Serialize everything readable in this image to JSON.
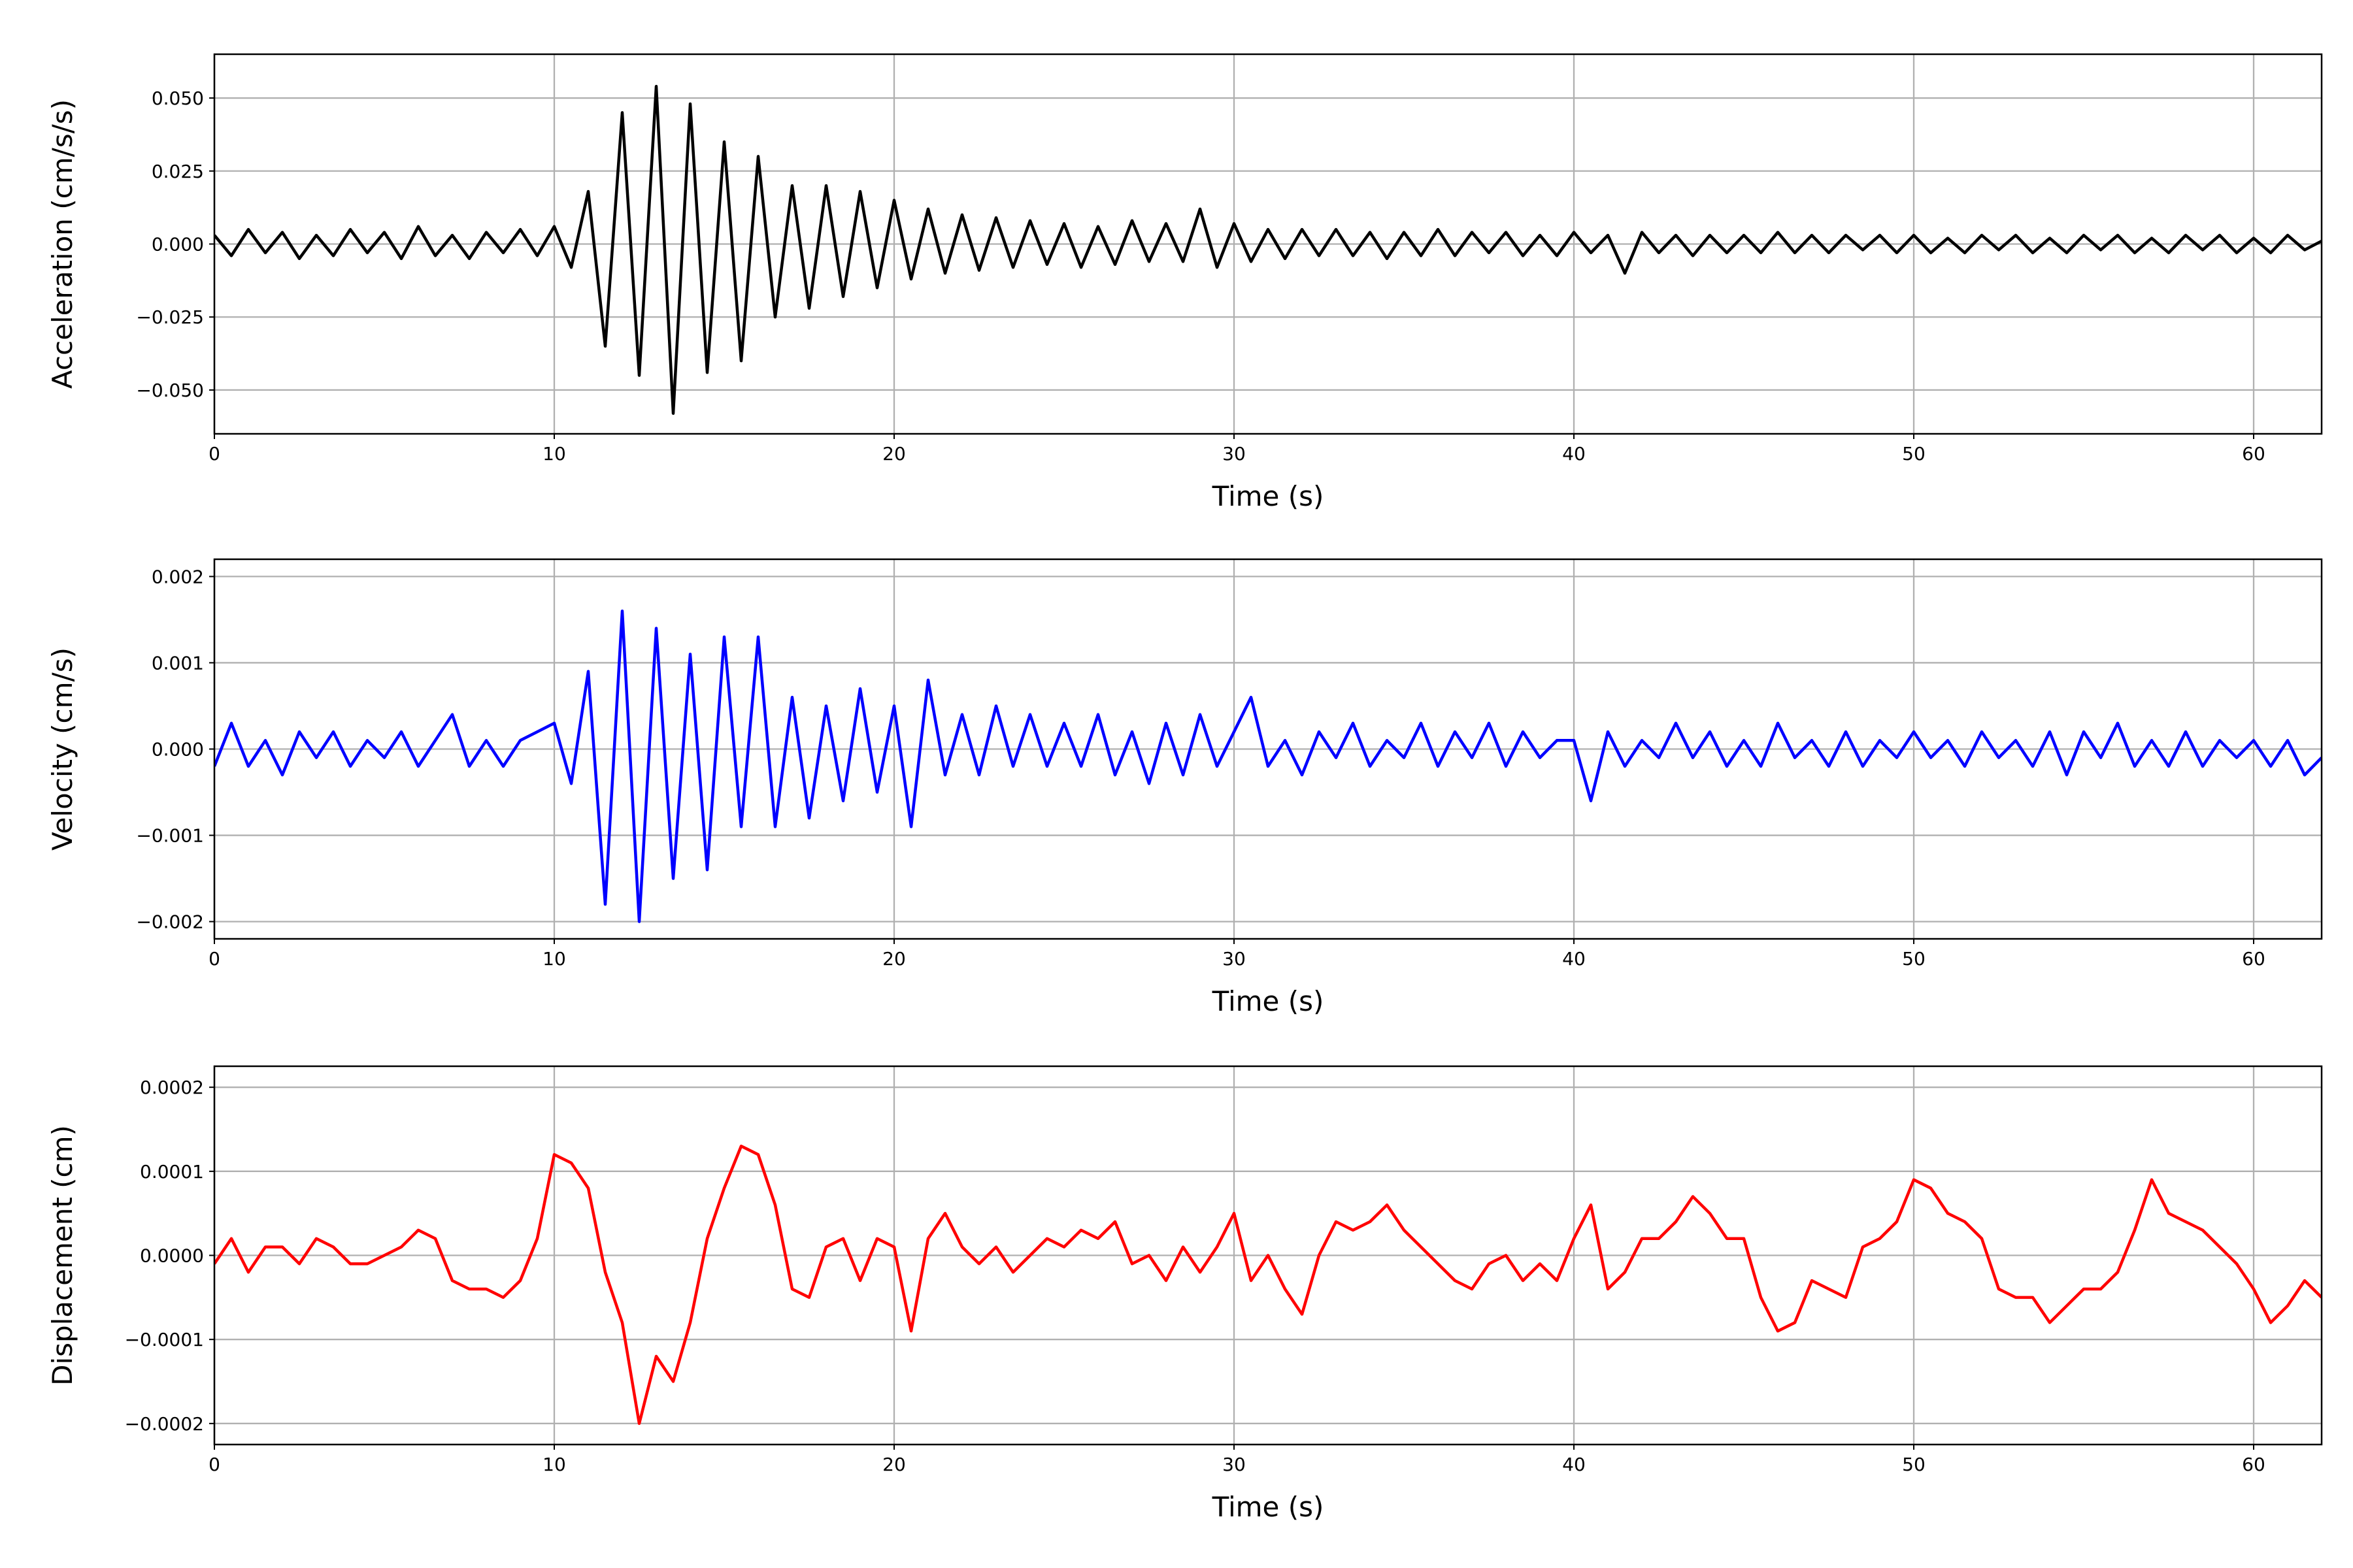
{
  "chart_data": [
    {
      "type": "line",
      "xlabel": "Time (s)",
      "ylabel": "Acceleration (cm/s/s)",
      "color": "#000000",
      "grid": true,
      "xlim": [
        0,
        62
      ],
      "xticks": [
        0,
        10,
        20,
        30,
        40,
        50,
        60
      ],
      "ylim": [
        -0.065,
        0.065
      ],
      "yticks": [
        {
          "value": -0.05,
          "label": "−0.050"
        },
        {
          "value": -0.025,
          "label": "−0.025"
        },
        {
          "value": 0,
          "label": "0.000"
        },
        {
          "value": 0.025,
          "label": "0.025"
        },
        {
          "value": 0.05,
          "label": "0.050"
        }
      ],
      "x": [
        0,
        0.5,
        1,
        1.5,
        2,
        2.5,
        3,
        3.5,
        4,
        4.5,
        5,
        5.5,
        6,
        6.5,
        7,
        7.5,
        8,
        8.5,
        9,
        9.5,
        10,
        10.5,
        11,
        11.5,
        12,
        12.5,
        13,
        13.5,
        14,
        14.5,
        15,
        15.5,
        16,
        16.5,
        17,
        17.5,
        18,
        18.5,
        19,
        19.5,
        20,
        20.5,
        21,
        21.5,
        22,
        22.5,
        23,
        23.5,
        24,
        24.5,
        25,
        25.5,
        26,
        26.5,
        27,
        27.5,
        28,
        28.5,
        29,
        29.5,
        30,
        30.5,
        31,
        31.5,
        32,
        32.5,
        33,
        33.5,
        34,
        34.5,
        35,
        35.5,
        36,
        36.5,
        37,
        37.5,
        38,
        38.5,
        39,
        39.5,
        40,
        40.5,
        41,
        41.5,
        42,
        42.5,
        43,
        43.5,
        44,
        44.5,
        45,
        45.5,
        46,
        46.5,
        47,
        47.5,
        48,
        48.5,
        49,
        49.5,
        50,
        50.5,
        51,
        51.5,
        52,
        52.5,
        53,
        53.5,
        54,
        54.5,
        55,
        55.5,
        56,
        56.5,
        57,
        57.5,
        58,
        58.5,
        59,
        59.5,
        60,
        60.5,
        61,
        61.5,
        62
      ],
      "values": [
        0.003,
        -0.004,
        0.005,
        -0.003,
        0.004,
        -0.005,
        0.003,
        -0.004,
        0.005,
        -0.003,
        0.004,
        -0.005,
        0.006,
        -0.004,
        0.003,
        -0.005,
        0.004,
        -0.003,
        0.005,
        -0.004,
        0.006,
        -0.008,
        0.018,
        -0.035,
        0.045,
        -0.045,
        0.054,
        -0.058,
        0.048,
        -0.044,
        0.035,
        -0.04,
        0.03,
        -0.025,
        0.02,
        -0.022,
        0.02,
        -0.018,
        0.018,
        -0.015,
        0.015,
        -0.012,
        0.012,
        -0.01,
        0.01,
        -0.009,
        0.009,
        -0.008,
        0.008,
        -0.007,
        0.007,
        -0.008,
        0.006,
        -0.007,
        0.008,
        -0.006,
        0.007,
        -0.006,
        0.012,
        -0.008,
        0.007,
        -0.006,
        0.005,
        -0.005,
        0.005,
        -0.004,
        0.005,
        -0.004,
        0.004,
        -0.005,
        0.004,
        -0.004,
        0.005,
        -0.004,
        0.004,
        -0.003,
        0.004,
        -0.004,
        0.003,
        -0.004,
        0.004,
        -0.003,
        0.003,
        -0.01,
        0.004,
        -0.003,
        0.003,
        -0.004,
        0.003,
        -0.003,
        0.003,
        -0.003,
        0.004,
        -0.003,
        0.003,
        -0.003,
        0.003,
        -0.002,
        0.003,
        -0.003,
        0.003,
        -0.003,
        0.002,
        -0.003,
        0.003,
        -0.002,
        0.003,
        -0.003,
        0.002,
        -0.003,
        0.003,
        -0.002,
        0.003,
        -0.003,
        0.002,
        -0.003,
        0.003,
        -0.002,
        0.003,
        -0.003,
        0.002,
        -0.003,
        0.003,
        -0.002,
        0.001
      ]
    },
    {
      "type": "line",
      "xlabel": "Time (s)",
      "ylabel": "Velocity (cm/s)",
      "color": "#0000ff",
      "grid": true,
      "xlim": [
        0,
        62
      ],
      "xticks": [
        0,
        10,
        20,
        30,
        40,
        50,
        60
      ],
      "ylim": [
        -0.0022,
        0.0022
      ],
      "yticks": [
        {
          "value": -0.002,
          "label": "−0.002"
        },
        {
          "value": -0.001,
          "label": "−0.001"
        },
        {
          "value": 0,
          "label": "0.000"
        },
        {
          "value": 0.001,
          "label": "0.001"
        },
        {
          "value": 0.002,
          "label": "0.002"
        }
      ],
      "x": [
        0,
        0.5,
        1,
        1.5,
        2,
        2.5,
        3,
        3.5,
        4,
        4.5,
        5,
        5.5,
        6,
        6.5,
        7,
        7.5,
        8,
        8.5,
        9,
        9.5,
        10,
        10.5,
        11,
        11.5,
        12,
        12.5,
        13,
        13.5,
        14,
        14.5,
        15,
        15.5,
        16,
        16.5,
        17,
        17.5,
        18,
        18.5,
        19,
        19.5,
        20,
        20.5,
        21,
        21.5,
        22,
        22.5,
        23,
        23.5,
        24,
        24.5,
        25,
        25.5,
        26,
        26.5,
        27,
        27.5,
        28,
        28.5,
        29,
        29.5,
        30,
        30.5,
        31,
        31.5,
        32,
        32.5,
        33,
        33.5,
        34,
        34.5,
        35,
        35.5,
        36,
        36.5,
        37,
        37.5,
        38,
        38.5,
        39,
        39.5,
        40,
        40.5,
        41,
        41.5,
        42,
        42.5,
        43,
        43.5,
        44,
        44.5,
        45,
        45.5,
        46,
        46.5,
        47,
        47.5,
        48,
        48.5,
        49,
        49.5,
        50,
        50.5,
        51,
        51.5,
        52,
        52.5,
        53,
        53.5,
        54,
        54.5,
        55,
        55.5,
        56,
        56.5,
        57,
        57.5,
        58,
        58.5,
        59,
        59.5,
        60,
        60.5,
        61,
        61.5,
        62
      ],
      "values": [
        -0.0002,
        0.0003,
        -0.0002,
        0.0001,
        -0.0003,
        0.0002,
        -0.0001,
        0.0002,
        -0.0002,
        0.0001,
        -0.0001,
        0.0002,
        -0.0002,
        0.0001,
        0.0004,
        -0.0002,
        0.0001,
        -0.0002,
        0.0001,
        0.0002,
        0.0003,
        -0.0004,
        0.0009,
        -0.0018,
        0.0016,
        -0.002,
        0.0014,
        -0.0015,
        0.0011,
        -0.0014,
        0.0013,
        -0.0009,
        0.0013,
        -0.0009,
        0.0006,
        -0.0008,
        0.0005,
        -0.0006,
        0.0007,
        -0.0005,
        0.0005,
        -0.0009,
        0.0008,
        -0.0003,
        0.0004,
        -0.0003,
        0.0005,
        -0.0002,
        0.0004,
        -0.0002,
        0.0003,
        -0.0002,
        0.0004,
        -0.0003,
        0.0002,
        -0.0004,
        0.0003,
        -0.0003,
        0.0004,
        -0.0002,
        0.0002,
        0.0006,
        -0.0002,
        0.0001,
        -0.0003,
        0.0002,
        -0.0001,
        0.0003,
        -0.0002,
        0.0001,
        -0.0001,
        0.0003,
        -0.0002,
        0.0002,
        -0.0001,
        0.0003,
        -0.0002,
        0.0002,
        -0.0001,
        0.0001,
        0.0001,
        -0.0006,
        0.0002,
        -0.0002,
        0.0001,
        -0.0001,
        0.0003,
        -0.0001,
        0.0002,
        -0.0002,
        0.0001,
        -0.0002,
        0.0003,
        -0.0001,
        0.0001,
        -0.0002,
        0.0002,
        -0.0002,
        0.0001,
        -0.0001,
        0.0002,
        -0.0001,
        0.0001,
        -0.0002,
        0.0002,
        -0.0001,
        0.0001,
        -0.0002,
        0.0002,
        -0.0003,
        0.0002,
        -0.0001,
        0.0003,
        -0.0002,
        0.0001,
        -0.0002,
        0.0002,
        -0.0002,
        0.0001,
        -0.0001,
        0.0001,
        -0.0002,
        0.0001,
        -0.0003,
        -0.0001
      ]
    },
    {
      "type": "line",
      "xlabel": "Time (s)",
      "ylabel": "Displacement (cm)",
      "color": "#ff0000",
      "grid": true,
      "xlim": [
        0,
        62
      ],
      "xticks": [
        0,
        10,
        20,
        30,
        40,
        50,
        60
      ],
      "ylim": [
        -0.000225,
        0.000225
      ],
      "yticks": [
        {
          "value": -0.0002,
          "label": "−0.0002"
        },
        {
          "value": -0.0001,
          "label": "−0.0001"
        },
        {
          "value": 0,
          "label": "0.0000"
        },
        {
          "value": 0.0001,
          "label": "0.0001"
        },
        {
          "value": 0.0002,
          "label": "0.0002"
        }
      ],
      "x": [
        0,
        0.5,
        1,
        1.5,
        2,
        2.5,
        3,
        3.5,
        4,
        4.5,
        5,
        5.5,
        6,
        6.5,
        7,
        7.5,
        8,
        8.5,
        9,
        9.5,
        10,
        10.5,
        11,
        11.5,
        12,
        12.5,
        13,
        13.5,
        14,
        14.5,
        15,
        15.5,
        16,
        16.5,
        17,
        17.5,
        18,
        18.5,
        19,
        19.5,
        20,
        20.5,
        21,
        21.5,
        22,
        22.5,
        23,
        23.5,
        24,
        24.5,
        25,
        25.5,
        26,
        26.5,
        27,
        27.5,
        28,
        28.5,
        29,
        29.5,
        30,
        30.5,
        31,
        31.5,
        32,
        32.5,
        33,
        33.5,
        34,
        34.5,
        35,
        35.5,
        36,
        36.5,
        37,
        37.5,
        38,
        38.5,
        39,
        39.5,
        40,
        40.5,
        41,
        41.5,
        42,
        42.5,
        43,
        43.5,
        44,
        44.5,
        45,
        45.5,
        46,
        46.5,
        47,
        47.5,
        48,
        48.5,
        49,
        49.5,
        50,
        50.5,
        51,
        51.5,
        52,
        52.5,
        53,
        53.5,
        54,
        54.5,
        55,
        55.5,
        56,
        56.5,
        57,
        57.5,
        58,
        58.5,
        59,
        59.5,
        60,
        60.5,
        61,
        61.5,
        62
      ],
      "values": [
        -1e-05,
        2e-05,
        -2e-05,
        1e-05,
        1e-05,
        -1e-05,
        2e-05,
        1e-05,
        -1e-05,
        -1e-05,
        0.0,
        1e-05,
        3e-05,
        2e-05,
        -3e-05,
        -4e-05,
        -4e-05,
        -5e-05,
        -3e-05,
        2e-05,
        0.00012,
        0.00011,
        8e-05,
        -2e-05,
        -8e-05,
        -0.0002,
        -0.00012,
        -0.00015,
        -8e-05,
        2e-05,
        8e-05,
        0.00013,
        0.00012,
        6e-05,
        -4e-05,
        -5e-05,
        1e-05,
        2e-05,
        -3e-05,
        2e-05,
        1e-05,
        -9e-05,
        2e-05,
        5e-05,
        1e-05,
        -1e-05,
        1e-05,
        -2e-05,
        0.0,
        2e-05,
        1e-05,
        3e-05,
        2e-05,
        4e-05,
        -1e-05,
        0.0,
        -3e-05,
        1e-05,
        -2e-05,
        1e-05,
        5e-05,
        -3e-05,
        0.0,
        -4e-05,
        -7e-05,
        0.0,
        4e-05,
        3e-05,
        4e-05,
        6e-05,
        3e-05,
        1e-05,
        -1e-05,
        -3e-05,
        -4e-05,
        -1e-05,
        0.0,
        -3e-05,
        -1e-05,
        -3e-05,
        2e-05,
        6e-05,
        -4e-05,
        -2e-05,
        2e-05,
        2e-05,
        4e-05,
        7e-05,
        5e-05,
        2e-05,
        2e-05,
        -5e-05,
        -9e-05,
        -8e-05,
        -3e-05,
        -4e-05,
        -5e-05,
        1e-05,
        2e-05,
        4e-05,
        9e-05,
        8e-05,
        5e-05,
        4e-05,
        2e-05,
        -4e-05,
        -5e-05,
        -5e-05,
        -8e-05,
        -6e-05,
        -4e-05,
        -4e-05,
        -2e-05,
        3e-05,
        9e-05,
        5e-05,
        4e-05,
        3e-05,
        1e-05,
        -1e-05,
        -4e-05,
        -8e-05,
        -6e-05,
        -3e-05,
        -5e-05
      ]
    }
  ]
}
